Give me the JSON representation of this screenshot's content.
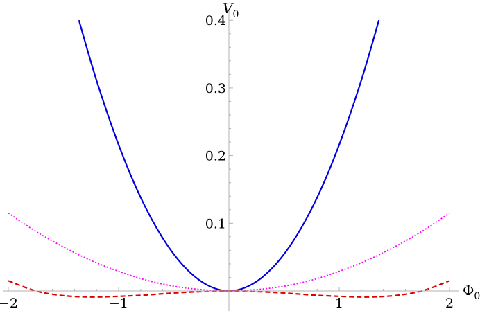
{
  "chart_data": {
    "type": "line",
    "title": "",
    "xlabel": "Φ",
    "xlabel_sub": "0",
    "ylabel": "V",
    "ylabel_sub": "0",
    "xlim": [
      -2,
      2
    ],
    "ylim": [
      -0.01,
      0.4
    ],
    "xticks": [
      -2,
      -1,
      0,
      1,
      2
    ],
    "xtick_labels": [
      "−2",
      "−1",
      "",
      "1",
      "2"
    ],
    "yticks": [
      0.1,
      0.2,
      0.3,
      0.4
    ],
    "ytick_labels": [
      "0.1",
      "0.2",
      "0.3",
      "0.4"
    ],
    "grid": false,
    "series": [
      {
        "color": "#0000dd",
        "style": "solid",
        "x": [
          -1.36,
          -1.2,
          -1.0,
          -0.8,
          -0.6,
          -0.4,
          -0.2,
          0.0,
          0.2,
          0.4,
          0.6,
          0.8,
          1.0,
          1.2,
          1.36
        ],
        "y": [
          0.4,
          0.311,
          0.216,
          0.138,
          0.078,
          0.035,
          0.009,
          0.0,
          0.009,
          0.035,
          0.078,
          0.138,
          0.216,
          0.311,
          0.4
        ]
      },
      {
        "color": "#ff00ff",
        "style": "dotted",
        "x": [
          -2.0,
          -1.75,
          -1.5,
          -1.25,
          -1.0,
          -0.75,
          -0.5,
          -0.25,
          0.0,
          0.25,
          0.5,
          0.75,
          1.0,
          1.25,
          1.5,
          1.75,
          2.0
        ],
        "y": [
          0.115,
          0.088,
          0.065,
          0.045,
          0.029,
          0.016,
          0.007,
          0.002,
          0.0,
          0.002,
          0.007,
          0.016,
          0.029,
          0.045,
          0.065,
          0.088,
          0.115
        ]
      },
      {
        "color": "#dd0000",
        "style": "dashed",
        "x": [
          -2.0,
          -1.75,
          -1.5,
          -1.25,
          -1.0,
          -0.75,
          -0.5,
          -0.25,
          0.0,
          0.25,
          0.5,
          0.75,
          1.0,
          1.25,
          1.5,
          1.75,
          2.0
        ],
        "y": [
          0.015,
          0.0,
          -0.007,
          -0.009,
          -0.008,
          -0.006,
          -0.003,
          -0.001,
          0.0,
          -0.001,
          -0.003,
          -0.006,
          -0.008,
          -0.009,
          -0.007,
          0.0,
          0.015
        ]
      }
    ]
  }
}
